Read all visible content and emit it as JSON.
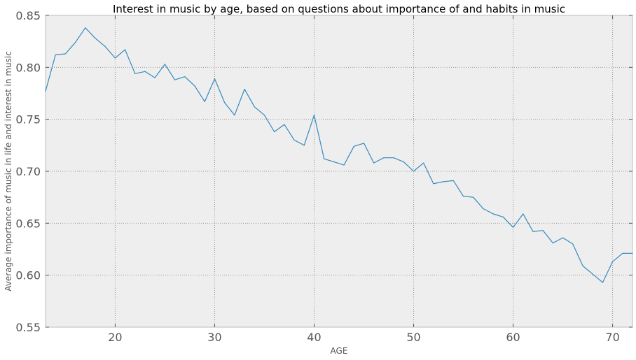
{
  "chart_data": {
    "type": "line",
    "title": "Interest in music by age, based on questions about importance of and habits in music",
    "xlabel": "AGE",
    "ylabel": "Average importance of music in life and interest in music",
    "xlim": [
      13,
      72
    ],
    "ylim": [
      0.55,
      0.85
    ],
    "xticks": [
      "20",
      "30",
      "40",
      "50",
      "60",
      "70"
    ],
    "yticks": [
      "0.55",
      "0.60",
      "0.65",
      "0.70",
      "0.75",
      "0.80",
      "0.85"
    ],
    "grid": true,
    "grid_style": "dotted",
    "colors": {
      "line": "#348abd",
      "plot_background": "#eeeeee",
      "grid": "#999999",
      "axes": "#bcbcbc"
    },
    "series": [
      {
        "x": [
          13,
          14,
          15,
          16,
          17,
          18,
          19,
          20,
          21,
          22,
          23,
          24,
          25,
          26,
          27,
          28,
          29,
          30,
          31,
          32,
          33,
          34,
          35,
          36,
          37,
          38,
          39,
          40,
          41,
          42,
          43,
          44,
          45,
          46,
          47,
          48,
          49,
          50,
          51,
          52,
          53,
          54,
          55,
          56,
          57,
          58,
          59,
          60,
          61,
          62,
          63,
          64,
          65,
          66,
          67,
          68,
          69,
          70,
          71,
          72
        ],
        "values": [
          0.777,
          0.812,
          0.813,
          0.824,
          0.838,
          0.828,
          0.82,
          0.809,
          0.817,
          0.794,
          0.796,
          0.79,
          0.803,
          0.788,
          0.791,
          0.782,
          0.767,
          0.789,
          0.766,
          0.754,
          0.779,
          0.762,
          0.754,
          0.738,
          0.745,
          0.73,
          0.725,
          0.754,
          0.712,
          0.709,
          0.706,
          0.724,
          0.727,
          0.708,
          0.713,
          0.713,
          0.709,
          0.7,
          0.708,
          0.688,
          0.69,
          0.691,
          0.676,
          0.675,
          0.664,
          0.659,
          0.656,
          0.646,
          0.659,
          0.642,
          0.643,
          0.631,
          0.636,
          0.63,
          0.609,
          0.601,
          0.593,
          0.613,
          0.621,
          0.621
        ]
      }
    ]
  }
}
